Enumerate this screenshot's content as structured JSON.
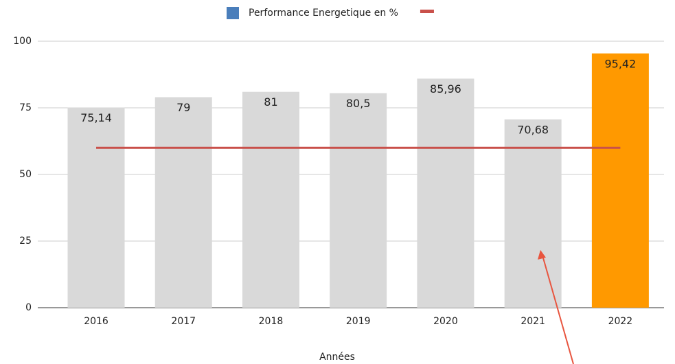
{
  "chart_data": {
    "type": "bar",
    "categories": [
      "2016",
      "2017",
      "2018",
      "2019",
      "2020",
      "2021",
      "2022"
    ],
    "x_label": "Années",
    "series": [
      {
        "name": "Performance Energetique en %",
        "color": "#4a7ebb",
        "type": "bar",
        "colors": [
          "#d9d9d9",
          "#d9d9d9",
          "#d9d9d9",
          "#d9d9d9",
          "#d9d9d9",
          "#d9d9d9",
          "#ff9900"
        ],
        "values": [
          75.14,
          79,
          81,
          80.5,
          85.96,
          70.68,
          95.42
        ],
        "value_labels": [
          "75,14",
          "79",
          "81",
          "80,5",
          "85,96",
          "70,68",
          "95,42"
        ]
      },
      {
        "color": "#c9504a",
        "type": "line",
        "values": [
          60,
          60,
          60,
          60,
          60,
          60,
          60
        ]
      }
    ],
    "ylim": [
      0,
      100
    ],
    "yticks": [
      0,
      25,
      50,
      75,
      100
    ],
    "grid": true
  }
}
